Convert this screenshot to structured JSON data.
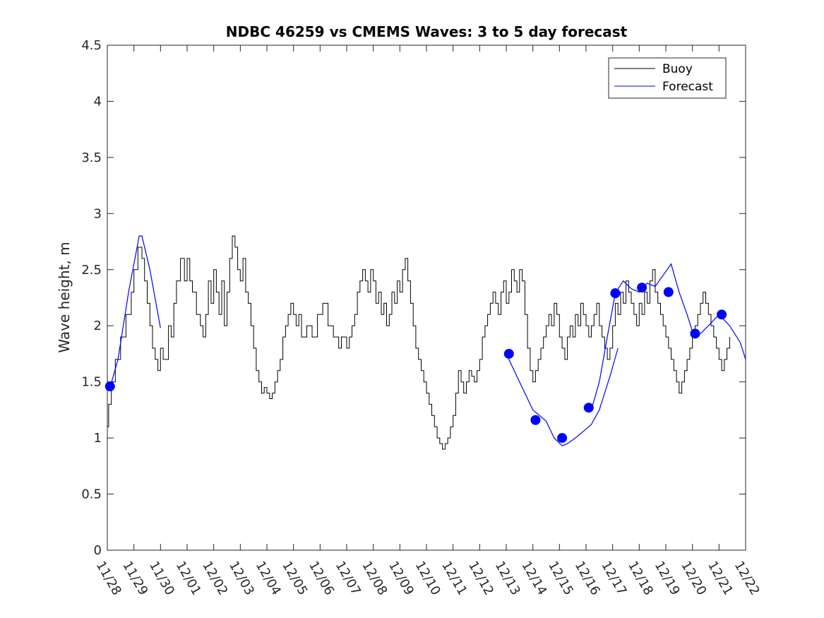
{
  "chart_data": {
    "type": "line",
    "title": "NDBC 46259 vs CMEMS Waves: 3 to 5 day forecast",
    "xlabel": "",
    "ylabel": "Wave height, m",
    "xlim": [
      0,
      24
    ],
    "ylim": [
      0,
      4.5
    ],
    "categories": [
      "11/28",
      "11/29",
      "11/30",
      "12/01",
      "12/02",
      "12/03",
      "12/04",
      "12/05",
      "12/06",
      "12/07",
      "12/08",
      "12/09",
      "12/10",
      "12/11",
      "12/12",
      "12/13",
      "12/14",
      "12/15",
      "12/16",
      "12/17",
      "12/18",
      "12/19",
      "12/20",
      "12/21",
      "12/22"
    ],
    "y_ticks": [
      "0",
      "0.5",
      "1",
      "1.5",
      "2",
      "2.5",
      "3",
      "3.5",
      "4",
      "4.5"
    ],
    "grid": false,
    "legend": {
      "position": "top-right",
      "entries": [
        "Buoy",
        "Forecast"
      ]
    },
    "colors": {
      "buoy": "#000000",
      "forecast": "#0000ff",
      "axis": "#262626"
    },
    "series": [
      {
        "name": "Buoy",
        "x": [
          0,
          0.05,
          0.15,
          0.3,
          0.5,
          0.7,
          0.9,
          1.0,
          1.15,
          1.3,
          1.4,
          1.5,
          1.6,
          1.7,
          1.8,
          1.9,
          2.0,
          2.1,
          2.3,
          2.4,
          2.5,
          2.6,
          2.75,
          2.9,
          3.0,
          3.1,
          3.2,
          3.35,
          3.5,
          3.6,
          3.7,
          3.8,
          3.9,
          4.0,
          4.1,
          4.2,
          4.3,
          4.4,
          4.5,
          4.6,
          4.7,
          4.8,
          4.9,
          5.0,
          5.1,
          5.2,
          5.3,
          5.4,
          5.5,
          5.6,
          5.7,
          5.8,
          5.9,
          6.0,
          6.1,
          6.2,
          6.3,
          6.4,
          6.5,
          6.6,
          6.7,
          6.8,
          6.9,
          7.0,
          7.1,
          7.2,
          7.3,
          7.5,
          7.7,
          7.9,
          8.1,
          8.3,
          8.5,
          8.7,
          8.8,
          9.0,
          9.1,
          9.2,
          9.3,
          9.4,
          9.5,
          9.6,
          9.7,
          9.8,
          9.9,
          10.0,
          10.1,
          10.2,
          10.3,
          10.4,
          10.5,
          10.6,
          10.7,
          10.8,
          10.9,
          11.0,
          11.1,
          11.2,
          11.3,
          11.4,
          11.5,
          11.6,
          11.7,
          11.8,
          11.9,
          12.0,
          12.1,
          12.2,
          12.3,
          12.4,
          12.5,
          12.6,
          12.7,
          12.8,
          12.9,
          13.0,
          13.1,
          13.2,
          13.3,
          13.4,
          13.5,
          13.6,
          13.7,
          13.8,
          13.9,
          14.0,
          14.1,
          14.2,
          14.3,
          14.4,
          14.5,
          14.6,
          14.7,
          14.8,
          14.9,
          15.0,
          15.1,
          15.2,
          15.3,
          15.4,
          15.5,
          15.6,
          15.7,
          15.8,
          15.9,
          16.0,
          16.1,
          16.2,
          16.3,
          16.4,
          16.5,
          16.6,
          16.7,
          16.8,
          16.9,
          17.0,
          17.1,
          17.2,
          17.3,
          17.4,
          17.5,
          17.6,
          17.7,
          17.8,
          17.9,
          18.0,
          18.1,
          18.2,
          18.3,
          18.4,
          18.5,
          18.6,
          18.7,
          18.8,
          18.9,
          19.0,
          19.1,
          19.2,
          19.3,
          19.4,
          19.5,
          19.6,
          19.7,
          19.8,
          19.9,
          20.0,
          20.1,
          20.2,
          20.3,
          20.4,
          20.5,
          20.6,
          20.7,
          20.8,
          20.9,
          21.0,
          21.1,
          21.2,
          21.3,
          21.4,
          21.5,
          21.6,
          21.7,
          21.8,
          21.9,
          22.0,
          22.1,
          22.2,
          22.3,
          22.4,
          22.5,
          22.6,
          22.7,
          22.8,
          22.9,
          23.0,
          23.1,
          23.2,
          23.3,
          23.4
        ],
        "values": [
          1.1,
          1.3,
          1.5,
          1.7,
          1.9,
          2.1,
          2.3,
          2.5,
          2.7,
          2.6,
          2.4,
          2.2,
          2.0,
          1.8,
          1.7,
          1.6,
          1.8,
          1.7,
          2.0,
          1.9,
          2.2,
          2.4,
          2.6,
          2.4,
          2.6,
          2.4,
          2.3,
          2.1,
          2.0,
          1.9,
          2.1,
          2.4,
          2.2,
          2.5,
          2.3,
          2.1,
          2.4,
          2.0,
          2.3,
          2.6,
          2.8,
          2.7,
          2.5,
          2.4,
          2.6,
          2.3,
          2.2,
          2.0,
          1.8,
          1.6,
          1.5,
          1.4,
          1.45,
          1.4,
          1.35,
          1.4,
          1.5,
          1.6,
          1.7,
          1.9,
          2.0,
          2.1,
          2.2,
          2.1,
          2.0,
          2.1,
          1.9,
          2.0,
          1.9,
          2.1,
          2.2,
          2.0,
          1.9,
          1.8,
          1.9,
          1.8,
          1.9,
          2.0,
          2.1,
          2.3,
          2.4,
          2.5,
          2.4,
          2.3,
          2.5,
          2.4,
          2.2,
          2.3,
          2.1,
          2.2,
          2.0,
          2.1,
          2.3,
          2.2,
          2.4,
          2.3,
          2.5,
          2.6,
          2.4,
          2.2,
          2.0,
          1.8,
          1.7,
          1.6,
          1.5,
          1.4,
          1.3,
          1.2,
          1.1,
          1.0,
          0.95,
          0.9,
          0.95,
          1.0,
          1.1,
          1.2,
          1.4,
          1.6,
          1.5,
          1.4,
          1.5,
          1.6,
          1.55,
          1.5,
          1.6,
          1.7,
          1.9,
          2.0,
          2.1,
          2.2,
          2.3,
          2.2,
          2.1,
          2.3,
          2.4,
          2.2,
          2.3,
          2.5,
          2.4,
          2.3,
          2.5,
          2.4,
          2.1,
          1.8,
          1.6,
          1.5,
          1.6,
          1.7,
          1.8,
          1.9,
          2.0,
          2.1,
          2.0,
          2.2,
          2.1,
          1.9,
          1.8,
          1.7,
          1.9,
          2.0,
          1.9,
          2.1,
          2.0,
          2.2,
          2.1,
          2.0,
          1.9,
          2.0,
          2.1,
          2.2,
          2.0,
          1.9,
          1.8,
          1.7,
          1.8,
          2.0,
          2.2,
          2.1,
          2.3,
          2.2,
          2.4,
          2.3,
          2.2,
          2.1,
          2.0,
          2.2,
          2.1,
          2.3,
          2.2,
          2.4,
          2.5,
          2.3,
          2.2,
          2.1,
          2.0,
          1.9,
          1.8,
          1.7,
          1.6,
          1.5,
          1.4,
          1.5,
          1.6,
          1.7,
          1.8,
          1.9,
          2.0,
          2.1,
          2.2,
          2.3,
          2.2,
          2.1,
          2.0,
          1.9,
          1.8,
          1.7,
          1.6,
          1.7,
          1.8,
          1.9
        ]
      },
      {
        "name": "Forecast",
        "segments": [
          {
            "x": [
              0.1,
              0.4,
              0.8,
              1.2,
              1.3,
              1.6,
              2.0
            ],
            "values": [
              1.45,
              1.7,
              2.3,
              2.8,
              2.8,
              2.5,
              1.98
            ]
          },
          {
            "x": [
              15.0,
              15.5,
              16.0,
              16.5,
              16.8,
              17.1,
              17.3,
              17.6,
              18.0,
              18.2,
              18.5,
              18.9,
              19.2
            ],
            "values": [
              1.75,
              1.5,
              1.25,
              1.15,
              1.0,
              0.93,
              0.95,
              1.0,
              1.08,
              1.12,
              1.25,
              1.55,
              1.8
            ]
          },
          {
            "x": [
              18.2,
              18.5,
              18.8,
              19.1,
              19.4,
              19.7,
              20.0,
              20.3,
              20.6,
              20.9,
              21.2,
              21.5,
              21.8,
              22.0,
              22.3,
              22.6,
              23.0,
              23.4,
              23.8,
              24.0
            ],
            "values": [
              1.25,
              1.5,
              1.9,
              2.29,
              2.4,
              2.33,
              2.3,
              2.38,
              2.35,
              2.45,
              2.55,
              2.3,
              2.1,
              1.95,
              1.93,
              2.0,
              2.1,
              2.0,
              1.85,
              1.7
            ]
          }
        ],
        "markers": {
          "x": [
            0.1,
            15.1,
            16.1,
            17.1,
            18.1,
            19.1,
            20.1,
            21.1,
            22.1,
            23.1
          ],
          "values": [
            1.46,
            1.75,
            1.16,
            1.0,
            1.27,
            2.29,
            2.34,
            2.3,
            1.93,
            2.1
          ]
        }
      }
    ]
  }
}
